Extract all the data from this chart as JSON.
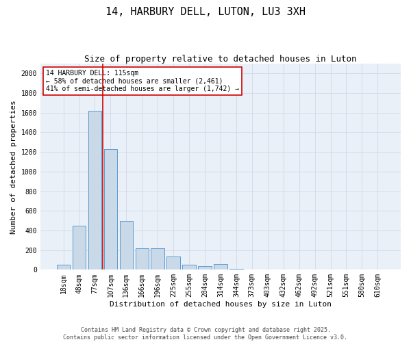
{
  "title": "14, HARBURY DELL, LUTON, LU3 3XH",
  "subtitle": "Size of property relative to detached houses in Luton",
  "xlabel": "Distribution of detached houses by size in Luton",
  "ylabel": "Number of detached properties",
  "categories": [
    "18sqm",
    "48sqm",
    "77sqm",
    "107sqm",
    "136sqm",
    "166sqm",
    "196sqm",
    "225sqm",
    "255sqm",
    "284sqm",
    "314sqm",
    "344sqm",
    "373sqm",
    "403sqm",
    "432sqm",
    "462sqm",
    "492sqm",
    "521sqm",
    "551sqm",
    "580sqm",
    "610sqm"
  ],
  "values": [
    50,
    450,
    1620,
    1230,
    500,
    215,
    215,
    135,
    50,
    35,
    60,
    10,
    5,
    2,
    1,
    0,
    0,
    0,
    0,
    0,
    0
  ],
  "bar_color": "#c9d9e8",
  "bar_edge_color": "#5b9bd5",
  "property_line_color": "#cc0000",
  "annotation_text": "14 HARBURY DELL: 115sqm\n← 58% of detached houses are smaller (2,461)\n41% of semi-detached houses are larger (1,742) →",
  "annotation_box_color": "#ffffff",
  "annotation_box_edge": "#cc0000",
  "ylim": [
    0,
    2100
  ],
  "yticks": [
    0,
    200,
    400,
    600,
    800,
    1000,
    1200,
    1400,
    1600,
    1800,
    2000
  ],
  "grid_color": "#d0d8e8",
  "background_color": "#eaf0f8",
  "footer": "Contains HM Land Registry data © Crown copyright and database right 2025.\nContains public sector information licensed under the Open Government Licence v3.0.",
  "title_fontsize": 11,
  "subtitle_fontsize": 9,
  "axis_label_fontsize": 8,
  "tick_fontsize": 7,
  "annotation_fontsize": 7,
  "footer_fontsize": 6
}
